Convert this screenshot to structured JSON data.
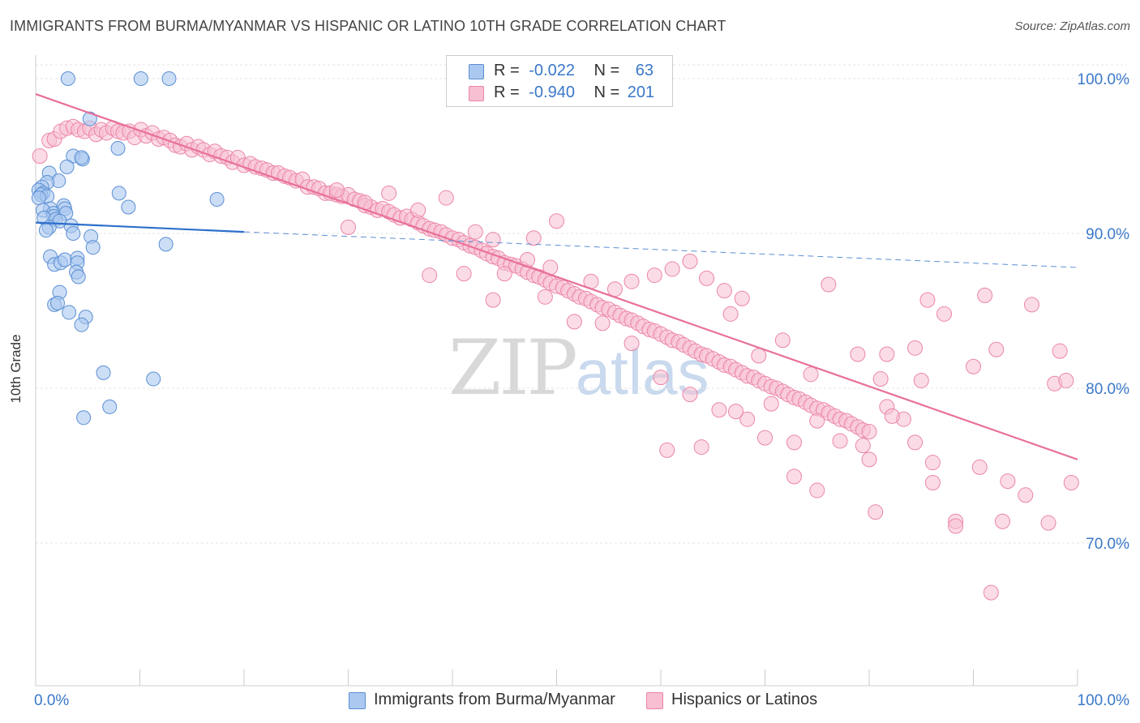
{
  "title": "IMMIGRANTS FROM BURMA/MYANMAR VS HISPANIC OR LATINO 10TH GRADE CORRELATION CHART",
  "source": "Source: ZipAtlas.com",
  "watermark": {
    "zip": "ZIP",
    "atlas": "atlas"
  },
  "legend": {
    "row1": {
      "r_label": "R =",
      "r_value": "-0.022",
      "n_label": "N =",
      "n_value": "63"
    },
    "row2": {
      "r_label": "R =",
      "r_value": "-0.940",
      "n_label": "N =",
      "n_value": "201"
    }
  },
  "chart_data": {
    "type": "scatter",
    "ylabel": "10th Grade",
    "xlim": [
      0,
      100
    ],
    "ylim": [
      60,
      101.5
    ],
    "x_tick_labels": [
      "0.0%",
      "100.0%"
    ],
    "y_ticks": [
      70,
      80,
      90,
      100
    ],
    "y_tick_labels": [
      "70.0%",
      "80.0%",
      "90.0%",
      "100.0%"
    ],
    "grid": true,
    "legend_position": "top-center",
    "colors": {
      "blue_fill": "#aac8f0",
      "blue_stroke": "#5b8fd4",
      "blue_line": "#2d6fcb",
      "pink_fill": "#f7bfd1",
      "pink_stroke": "#eb85a8",
      "pink_line": "#e8709a",
      "axis_text": "#3a78c9",
      "grid": "#e5e5e5"
    },
    "series": [
      {
        "name": "Immigrants from Burma/Myanmar",
        "color": "#5b8fd4",
        "trend": {
          "x": [
            0,
            20
          ],
          "y": [
            90.7,
            90.1
          ],
          "dashed_extension_to_x": 100,
          "y_at_100": 87.8
        },
        "points": [
          [
            3.1,
            100
          ],
          [
            10.1,
            100
          ],
          [
            12.8,
            100
          ],
          [
            5.2,
            97.4
          ],
          [
            7.9,
            95.5
          ],
          [
            3.6,
            95
          ],
          [
            4.5,
            94.8
          ],
          [
            4.4,
            94.9
          ],
          [
            3.0,
            94.3
          ],
          [
            1.3,
            93.9
          ],
          [
            2.2,
            93.4
          ],
          [
            1.1,
            93.3
          ],
          [
            0.6,
            93
          ],
          [
            0.3,
            92.8
          ],
          [
            0.7,
            92.6
          ],
          [
            0.5,
            92.5
          ],
          [
            1.1,
            92.4
          ],
          [
            0.3,
            92.3
          ],
          [
            8.0,
            92.6
          ],
          [
            17.4,
            92.2
          ],
          [
            8.9,
            91.7
          ],
          [
            2.7,
            91.8
          ],
          [
            2.8,
            91.6
          ],
          [
            1.4,
            91.6
          ],
          [
            0.7,
            91.5
          ],
          [
            1.7,
            91.3
          ],
          [
            2.9,
            91.3
          ],
          [
            1.7,
            91.1
          ],
          [
            0.8,
            91.0
          ],
          [
            1.9,
            90.9
          ],
          [
            2.3,
            90.8
          ],
          [
            3.4,
            90.5
          ],
          [
            1.3,
            90.4
          ],
          [
            1.0,
            90.2
          ],
          [
            3.6,
            90.0
          ],
          [
            5.3,
            89.8
          ],
          [
            5.5,
            89.1
          ],
          [
            12.5,
            89.3
          ],
          [
            1.4,
            88.5
          ],
          [
            1.8,
            88
          ],
          [
            2.4,
            88.1
          ],
          [
            2.8,
            88.3
          ],
          [
            4.0,
            88.4
          ],
          [
            4.0,
            88.1
          ],
          [
            3.9,
            87.5
          ],
          [
            4.1,
            87.2
          ],
          [
            2.3,
            86.2
          ],
          [
            1.8,
            85.4
          ],
          [
            2.1,
            85.5
          ],
          [
            3.2,
            84.9
          ],
          [
            4.8,
            84.6
          ],
          [
            4.4,
            84.1
          ],
          [
            6.5,
            81
          ],
          [
            11.3,
            80.6
          ],
          [
            7.1,
            78.8
          ],
          [
            4.6,
            78.1
          ]
        ]
      },
      {
        "name": "Hispanics or Latinos",
        "color": "#eb85a8",
        "trend": {
          "x": [
            0,
            100
          ],
          "y": [
            99.0,
            75.4
          ]
        },
        "points": [
          [
            0.4,
            95
          ],
          [
            1.3,
            96
          ],
          [
            1.8,
            96.1
          ],
          [
            2.4,
            96.6
          ],
          [
            3.0,
            96.8
          ],
          [
            3.6,
            96.9
          ],
          [
            4.1,
            96.7
          ],
          [
            4.7,
            96.6
          ],
          [
            5.2,
            96.8
          ],
          [
            5.8,
            96.4
          ],
          [
            6.3,
            96.7
          ],
          [
            6.8,
            96.5
          ],
          [
            7.4,
            96.8
          ],
          [
            7.9,
            96.6
          ],
          [
            8.4,
            96.5
          ],
          [
            9.0,
            96.6
          ],
          [
            9.5,
            96.2
          ],
          [
            10.1,
            96.7
          ],
          [
            10.6,
            96.3
          ],
          [
            11.2,
            96.5
          ],
          [
            11.8,
            96.1
          ],
          [
            12.3,
            96.2
          ],
          [
            12.9,
            96.0
          ],
          [
            13.4,
            95.7
          ],
          [
            13.9,
            95.6
          ],
          [
            14.5,
            95.8
          ],
          [
            15.0,
            95.4
          ],
          [
            15.6,
            95.6
          ],
          [
            16.1,
            95.4
          ],
          [
            16.7,
            95.1
          ],
          [
            17.2,
            95.3
          ],
          [
            17.8,
            95.0
          ],
          [
            18.4,
            94.9
          ],
          [
            18.9,
            94.6
          ],
          [
            19.4,
            94.9
          ],
          [
            20.0,
            94.4
          ],
          [
            20.6,
            94.5
          ],
          [
            21.1,
            94.3
          ],
          [
            21.7,
            94.2
          ],
          [
            22.2,
            94.1
          ],
          [
            22.8,
            93.9
          ],
          [
            23.3,
            93.9
          ],
          [
            23.9,
            93.7
          ],
          [
            24.4,
            93.6
          ],
          [
            25.0,
            93.4
          ],
          [
            25.6,
            93.5
          ],
          [
            26.1,
            93.0
          ],
          [
            26.7,
            93.0
          ],
          [
            27.2,
            92.9
          ],
          [
            27.8,
            92.6
          ],
          [
            28.3,
            92.6
          ],
          [
            28.9,
            92.5
          ],
          [
            29.4,
            92.4
          ],
          [
            30.0,
            92.5
          ],
          [
            30.6,
            92.2
          ],
          [
            31.1,
            92.1
          ],
          [
            31.6,
            91.8
          ],
          [
            32.2,
            91.7
          ],
          [
            32.8,
            91.5
          ],
          [
            33.3,
            91.6
          ],
          [
            33.9,
            91.4
          ],
          [
            34.4,
            91.2
          ],
          [
            35.0,
            91.0
          ],
          [
            35.6,
            91.1
          ],
          [
            36.1,
            90.9
          ],
          [
            36.7,
            90.7
          ],
          [
            37.2,
            90.5
          ],
          [
            37.8,
            90.3
          ],
          [
            38.3,
            90.2
          ],
          [
            38.9,
            90.1
          ],
          [
            39.4,
            89.9
          ],
          [
            40.0,
            89.7
          ],
          [
            40.6,
            89.6
          ],
          [
            41.1,
            89.4
          ],
          [
            41.7,
            89.2
          ],
          [
            42.2,
            89.1
          ],
          [
            42.8,
            88.9
          ],
          [
            43.3,
            88.7
          ],
          [
            43.9,
            88.5
          ],
          [
            44.4,
            88.4
          ],
          [
            45.0,
            88.1
          ],
          [
            45.6,
            88.0
          ],
          [
            46.1,
            87.9
          ],
          [
            46.7,
            87.7
          ],
          [
            47.2,
            87.5
          ],
          [
            47.8,
            87.3
          ],
          [
            48.3,
            87.2
          ],
          [
            48.9,
            87.0
          ],
          [
            49.4,
            86.8
          ],
          [
            50.0,
            86.6
          ],
          [
            50.6,
            86.5
          ],
          [
            51.1,
            86.3
          ],
          [
            51.7,
            86.1
          ],
          [
            52.2,
            85.9
          ],
          [
            52.8,
            85.8
          ],
          [
            53.3,
            85.6
          ],
          [
            53.9,
            85.4
          ],
          [
            54.4,
            85.2
          ],
          [
            55.0,
            85.1
          ],
          [
            55.6,
            84.9
          ],
          [
            56.1,
            84.7
          ],
          [
            56.7,
            84.5
          ],
          [
            57.2,
            84.4
          ],
          [
            57.8,
            84.2
          ],
          [
            58.3,
            84.0
          ],
          [
            58.9,
            83.8
          ],
          [
            59.4,
            83.7
          ],
          [
            60.0,
            83.5
          ],
          [
            60.6,
            83.3
          ],
          [
            61.1,
            83.1
          ],
          [
            61.7,
            83.0
          ],
          [
            62.2,
            82.8
          ],
          [
            62.8,
            82.6
          ],
          [
            63.3,
            82.4
          ],
          [
            63.9,
            82.2
          ],
          [
            64.4,
            82.1
          ],
          [
            65.0,
            81.9
          ],
          [
            65.6,
            81.7
          ],
          [
            66.1,
            81.5
          ],
          [
            66.7,
            81.4
          ],
          [
            67.2,
            81.2
          ],
          [
            67.8,
            81.0
          ],
          [
            68.3,
            80.8
          ],
          [
            68.9,
            80.7
          ],
          [
            69.4,
            80.5
          ],
          [
            70.0,
            80.3
          ],
          [
            70.6,
            80.1
          ],
          [
            71.1,
            80.0
          ],
          [
            71.7,
            79.8
          ],
          [
            72.2,
            79.6
          ],
          [
            72.8,
            79.4
          ],
          [
            73.3,
            79.3
          ],
          [
            73.9,
            79.1
          ],
          [
            74.4,
            78.9
          ],
          [
            75.0,
            78.7
          ],
          [
            75.6,
            78.6
          ],
          [
            76.1,
            78.4
          ],
          [
            76.7,
            78.2
          ],
          [
            77.2,
            78.0
          ],
          [
            77.8,
            77.9
          ],
          [
            78.3,
            77.7
          ],
          [
            78.9,
            77.5
          ],
          [
            79.4,
            77.3
          ],
          [
            80.0,
            77.2
          ],
          [
            28.9,
            92.8
          ],
          [
            31.6,
            92.0
          ],
          [
            33.9,
            92.6
          ],
          [
            36.7,
            91.5
          ],
          [
            39.4,
            92.3
          ],
          [
            42.2,
            90.1
          ],
          [
            43.9,
            89.6
          ],
          [
            45.0,
            87.4
          ],
          [
            47.2,
            88.3
          ],
          [
            49.4,
            87.8
          ],
          [
            53.3,
            86.9
          ],
          [
            55.6,
            86.4
          ],
          [
            57.2,
            86.9
          ],
          [
            59.4,
            87.3
          ],
          [
            61.1,
            87.7
          ],
          [
            62.8,
            88.2
          ],
          [
            64.4,
            87.1
          ],
          [
            66.1,
            86.3
          ],
          [
            67.8,
            85.8
          ],
          [
            47.8,
            89.7
          ],
          [
            50.0,
            90.8
          ],
          [
            30.0,
            90.4
          ],
          [
            37.8,
            87.3
          ],
          [
            41.1,
            87.4
          ],
          [
            43.9,
            85.7
          ],
          [
            48.9,
            85.9
          ],
          [
            51.7,
            84.3
          ],
          [
            54.4,
            84.2
          ],
          [
            57.2,
            82.9
          ],
          [
            60.0,
            80.7
          ],
          [
            62.8,
            79.6
          ],
          [
            65.6,
            78.6
          ],
          [
            68.3,
            78.0
          ],
          [
            70.6,
            79.0
          ],
          [
            72.8,
            76.5
          ],
          [
            75.0,
            77.9
          ],
          [
            77.2,
            76.6
          ],
          [
            79.4,
            76.3
          ],
          [
            81.7,
            78.8
          ],
          [
            84.4,
            76.5
          ],
          [
            86.1,
            73.9
          ],
          [
            88.3,
            71.4
          ],
          [
            90.6,
            74.9
          ],
          [
            92.8,
            71.4
          ],
          [
            95.0,
            73.1
          ],
          [
            97.2,
            71.3
          ],
          [
            99.4,
            73.9
          ],
          [
            70.0,
            76.8
          ],
          [
            72.8,
            74.3
          ],
          [
            75.0,
            73.4
          ],
          [
            80.6,
            72.0
          ],
          [
            85.6,
            85.7
          ],
          [
            84.4,
            82.6
          ],
          [
            85.0,
            80.5
          ],
          [
            87.2,
            84.8
          ],
          [
            88.3,
            71.1
          ],
          [
            91.1,
            86.0
          ],
          [
            95.6,
            85.4
          ],
          [
            98.3,
            82.4
          ],
          [
            76.1,
            86.7
          ],
          [
            78.9,
            82.2
          ],
          [
            66.7,
            84.8
          ],
          [
            69.4,
            82.1
          ],
          [
            71.7,
            83.1
          ],
          [
            74.4,
            80.9
          ],
          [
            63.9,
            76.2
          ],
          [
            67.2,
            78.5
          ],
          [
            60.6,
            76.0
          ],
          [
            90.0,
            81.4
          ],
          [
            92.2,
            82.5
          ],
          [
            80.0,
            75.4
          ],
          [
            81.7,
            82.2
          ],
          [
            81.1,
            80.6
          ],
          [
            86.1,
            75.2
          ],
          [
            83.3,
            78.0
          ],
          [
            91.7,
            66.8
          ],
          [
            97.8,
            80.3
          ],
          [
            98.9,
            80.5
          ],
          [
            82.2,
            78.2
          ],
          [
            93.3,
            74.0
          ]
        ]
      }
    ]
  },
  "bottom_legend": {
    "item1": "Immigrants from Burma/Myanmar",
    "item2": "Hispanics or Latinos"
  }
}
